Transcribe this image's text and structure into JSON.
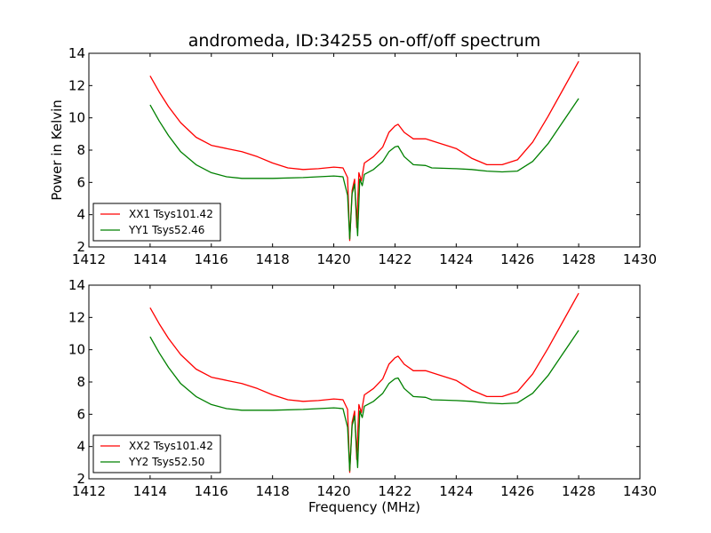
{
  "chart_data": [
    {
      "type": "line",
      "title": "andromeda, ID:34255 on-off/off spectrum",
      "xlabel": "",
      "ylabel": "Power in Kelvin",
      "xlim": [
        1412,
        1430
      ],
      "ylim": [
        2,
        14
      ],
      "xticks": [
        "1412",
        "1414",
        "1416",
        "1418",
        "1420",
        "1422",
        "1424",
        "1426",
        "1428",
        "1430"
      ],
      "yticks": [
        "2",
        "4",
        "6",
        "8",
        "10",
        "12",
        "14"
      ],
      "legend_position": "lower-left",
      "series": [
        {
          "name": "XX1 Tsys101.42",
          "color": "#ff0000",
          "points": [
            [
              1414.0,
              12.6
            ],
            [
              1414.3,
              11.6
            ],
            [
              1414.6,
              10.7
            ],
            [
              1415.0,
              9.7
            ],
            [
              1415.5,
              8.8
            ],
            [
              1416.0,
              8.3
            ],
            [
              1416.5,
              8.1
            ],
            [
              1417.0,
              7.9
            ],
            [
              1417.5,
              7.6
            ],
            [
              1418.0,
              7.2
            ],
            [
              1418.5,
              6.9
            ],
            [
              1419.0,
              6.8
            ],
            [
              1419.5,
              6.85
            ],
            [
              1420.0,
              6.95
            ],
            [
              1420.3,
              6.9
            ],
            [
              1420.45,
              6.3
            ],
            [
              1420.52,
              2.4
            ],
            [
              1420.6,
              5.5
            ],
            [
              1420.68,
              6.2
            ],
            [
              1420.75,
              3.2
            ],
            [
              1420.82,
              6.6
            ],
            [
              1420.9,
              6.1
            ],
            [
              1421.0,
              7.2
            ],
            [
              1421.3,
              7.6
            ],
            [
              1421.6,
              8.2
            ],
            [
              1421.8,
              9.1
            ],
            [
              1422.0,
              9.5
            ],
            [
              1422.1,
              9.6
            ],
            [
              1422.3,
              9.1
            ],
            [
              1422.6,
              8.7
            ],
            [
              1423.0,
              8.7
            ],
            [
              1423.5,
              8.4
            ],
            [
              1424.0,
              8.1
            ],
            [
              1424.5,
              7.5
            ],
            [
              1425.0,
              7.1
            ],
            [
              1425.5,
              7.1
            ],
            [
              1426.0,
              7.4
            ],
            [
              1426.5,
              8.5
            ],
            [
              1427.0,
              10.1
            ],
            [
              1427.5,
              11.8
            ],
            [
              1428.0,
              13.5
            ]
          ]
        },
        {
          "name": "YY1 Tsys52.46",
          "color": "#008000",
          "points": [
            [
              1414.0,
              10.8
            ],
            [
              1414.3,
              9.8
            ],
            [
              1414.6,
              8.9
            ],
            [
              1415.0,
              7.9
            ],
            [
              1415.5,
              7.1
            ],
            [
              1416.0,
              6.6
            ],
            [
              1416.5,
              6.35
            ],
            [
              1417.0,
              6.25
            ],
            [
              1418.0,
              6.25
            ],
            [
              1419.0,
              6.3
            ],
            [
              1419.5,
              6.35
            ],
            [
              1420.0,
              6.4
            ],
            [
              1420.3,
              6.35
            ],
            [
              1420.45,
              5.2
            ],
            [
              1420.52,
              2.5
            ],
            [
              1420.6,
              5.3
            ],
            [
              1420.68,
              5.9
            ],
            [
              1420.78,
              2.7
            ],
            [
              1420.85,
              6.2
            ],
            [
              1420.93,
              5.8
            ],
            [
              1421.0,
              6.5
            ],
            [
              1421.3,
              6.8
            ],
            [
              1421.6,
              7.3
            ],
            [
              1421.8,
              7.9
            ],
            [
              1422.0,
              8.2
            ],
            [
              1422.1,
              8.25
            ],
            [
              1422.3,
              7.6
            ],
            [
              1422.6,
              7.1
            ],
            [
              1423.0,
              7.05
            ],
            [
              1423.2,
              6.9
            ],
            [
              1424.0,
              6.85
            ],
            [
              1424.5,
              6.8
            ],
            [
              1425.0,
              6.7
            ],
            [
              1425.5,
              6.65
            ],
            [
              1426.0,
              6.7
            ],
            [
              1426.5,
              7.3
            ],
            [
              1427.0,
              8.4
            ],
            [
              1427.5,
              9.8
            ],
            [
              1428.0,
              11.2
            ]
          ]
        }
      ]
    },
    {
      "type": "line",
      "title": "",
      "xlabel": "Frequency (MHz)",
      "ylabel": "",
      "xlim": [
        1412,
        1430
      ],
      "ylim": [
        2,
        14
      ],
      "xticks": [
        "1412",
        "1414",
        "1416",
        "1418",
        "1420",
        "1422",
        "1424",
        "1426",
        "1428",
        "1430"
      ],
      "yticks": [
        "2",
        "4",
        "6",
        "8",
        "10",
        "12",
        "14"
      ],
      "legend_position": "lower-left",
      "series": [
        {
          "name": "XX2 Tsys101.42",
          "color": "#ff0000",
          "points": [
            [
              1414.0,
              12.6
            ],
            [
              1414.3,
              11.6
            ],
            [
              1414.6,
              10.7
            ],
            [
              1415.0,
              9.7
            ],
            [
              1415.5,
              8.8
            ],
            [
              1416.0,
              8.3
            ],
            [
              1416.5,
              8.1
            ],
            [
              1417.0,
              7.9
            ],
            [
              1417.5,
              7.6
            ],
            [
              1418.0,
              7.2
            ],
            [
              1418.5,
              6.9
            ],
            [
              1419.0,
              6.8
            ],
            [
              1419.5,
              6.85
            ],
            [
              1420.0,
              6.95
            ],
            [
              1420.3,
              6.9
            ],
            [
              1420.45,
              6.3
            ],
            [
              1420.52,
              2.4
            ],
            [
              1420.6,
              5.5
            ],
            [
              1420.68,
              6.2
            ],
            [
              1420.75,
              3.2
            ],
            [
              1420.82,
              6.6
            ],
            [
              1420.9,
              6.1
            ],
            [
              1421.0,
              7.2
            ],
            [
              1421.3,
              7.6
            ],
            [
              1421.6,
              8.2
            ],
            [
              1421.8,
              9.1
            ],
            [
              1422.0,
              9.5
            ],
            [
              1422.1,
              9.6
            ],
            [
              1422.3,
              9.1
            ],
            [
              1422.6,
              8.7
            ],
            [
              1423.0,
              8.7
            ],
            [
              1423.5,
              8.4
            ],
            [
              1424.0,
              8.1
            ],
            [
              1424.5,
              7.5
            ],
            [
              1425.0,
              7.1
            ],
            [
              1425.5,
              7.1
            ],
            [
              1426.0,
              7.4
            ],
            [
              1426.5,
              8.5
            ],
            [
              1427.0,
              10.1
            ],
            [
              1427.5,
              11.8
            ],
            [
              1428.0,
              13.5
            ]
          ]
        },
        {
          "name": "YY2 Tsys52.50",
          "color": "#008000",
          "points": [
            [
              1414.0,
              10.8
            ],
            [
              1414.3,
              9.8
            ],
            [
              1414.6,
              8.9
            ],
            [
              1415.0,
              7.9
            ],
            [
              1415.5,
              7.1
            ],
            [
              1416.0,
              6.6
            ],
            [
              1416.5,
              6.35
            ],
            [
              1417.0,
              6.25
            ],
            [
              1418.0,
              6.25
            ],
            [
              1419.0,
              6.3
            ],
            [
              1419.5,
              6.35
            ],
            [
              1420.0,
              6.4
            ],
            [
              1420.3,
              6.35
            ],
            [
              1420.45,
              5.2
            ],
            [
              1420.52,
              2.5
            ],
            [
              1420.6,
              5.3
            ],
            [
              1420.68,
              5.9
            ],
            [
              1420.78,
              2.7
            ],
            [
              1420.85,
              6.2
            ],
            [
              1420.93,
              5.8
            ],
            [
              1421.0,
              6.5
            ],
            [
              1421.3,
              6.8
            ],
            [
              1421.6,
              7.3
            ],
            [
              1421.8,
              7.9
            ],
            [
              1422.0,
              8.2
            ],
            [
              1422.1,
              8.25
            ],
            [
              1422.3,
              7.6
            ],
            [
              1422.6,
              7.1
            ],
            [
              1423.0,
              7.05
            ],
            [
              1423.2,
              6.9
            ],
            [
              1424.0,
              6.85
            ],
            [
              1424.5,
              6.8
            ],
            [
              1425.0,
              6.7
            ],
            [
              1425.5,
              6.65
            ],
            [
              1426.0,
              6.7
            ],
            [
              1426.5,
              7.3
            ],
            [
              1427.0,
              8.4
            ],
            [
              1427.5,
              9.8
            ],
            [
              1428.0,
              11.2
            ]
          ]
        }
      ]
    }
  ]
}
